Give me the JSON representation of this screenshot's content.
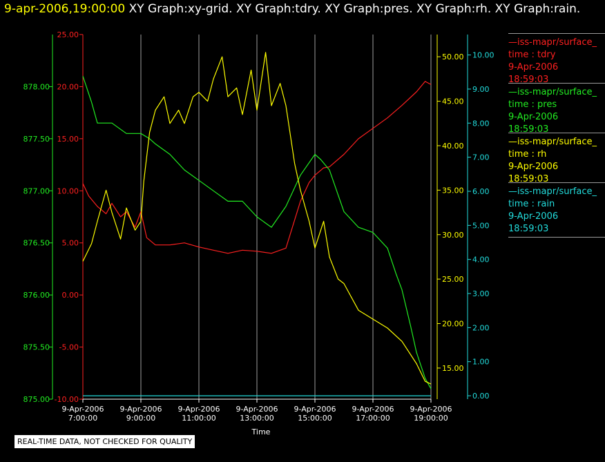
{
  "header": {
    "timestamp": "9-apr-2006,19:00:00",
    "graph_labels": [
      "XY Graph:xy-grid.",
      "XY Graph:tdry.",
      "XY Graph:pres.",
      "XY Graph:rh.",
      "XY Graph:rain."
    ]
  },
  "note": "REAL-TIME DATA, NOT CHECKED FOR QUALITY",
  "legend": [
    {
      "series_line": "—iss-mapr/surface_",
      "var": "time : tdry",
      "date": "9-Apr-2006",
      "time": "18:59:03",
      "color": "#ff2020"
    },
    {
      "series_line": "—iss-mapr/surface_",
      "var": "time : pres",
      "date": "9-Apr-2006",
      "time": "18:59:03",
      "color": "#22ee22"
    },
    {
      "series_line": "—iss-mapr/surface_",
      "var": "time : rh",
      "date": "9-Apr-2006",
      "time": "18:59:03",
      "color": "#ffff00"
    },
    {
      "series_line": "—iss-mapr/surface_",
      "var": "time : rain",
      "date": "9-Apr-2006",
      "time": "18:59:03",
      "color": "#22dddd"
    }
  ],
  "chart_data": {
    "type": "line",
    "xlabel": "Time",
    "x_ticks": [
      {
        "date": "9-Apr-2006",
        "time": "7:00:00",
        "h": 7
      },
      {
        "date": "9-Apr-2006",
        "time": "9:00:00",
        "h": 9
      },
      {
        "date": "9-Apr-2006",
        "time": "11:00:00",
        "h": 11
      },
      {
        "date": "9-Apr-2006",
        "time": "13:00:00",
        "h": 13
      },
      {
        "date": "9-Apr-2006",
        "time": "15:00:00",
        "h": 15
      },
      {
        "date": "9-Apr-2006",
        "time": "17:00:00",
        "h": 17
      },
      {
        "date": "9-Apr-2006",
        "time": "19:00:00",
        "h": 19
      }
    ],
    "xlim": [
      7,
      19
    ],
    "grid": "vertical",
    "axes": {
      "pres": {
        "color": "#22ee22",
        "ylim": [
          875.0,
          878.5
        ],
        "ticks": [
          "875.00",
          "875.50",
          "876.00",
          "876.50",
          "877.00",
          "877.50",
          "878.00"
        ],
        "side": "left-outer"
      },
      "tdry": {
        "color": "#ff2020",
        "ylim": [
          -10,
          25
        ],
        "ticks": [
          "-10.00",
          "-5.00",
          "0.00",
          "5.00",
          "10.00",
          "15.00",
          "20.00",
          "25.00"
        ],
        "side": "left-inner"
      },
      "rh": {
        "color": "#ffff00",
        "ylim": [
          11.5,
          52.5
        ],
        "ticks": [
          "15.00",
          "20.00",
          "25.00",
          "30.00",
          "35.00",
          "40.00",
          "45.00",
          "50.00"
        ],
        "side": "right-inner"
      },
      "rain": {
        "color": "#22dddd",
        "ylim": [
          -0.1,
          10.6
        ],
        "ticks": [
          "0.00",
          "1.00",
          "2.00",
          "3.00",
          "4.00",
          "5.00",
          "6.00",
          "7.00",
          "8.00",
          "9.00",
          "10.00"
        ],
        "side": "right-outer"
      }
    },
    "series": [
      {
        "name": "tdry",
        "axis": "tdry",
        "color": "#ff2020",
        "x": [
          7.0,
          7.2,
          7.5,
          7.8,
          8.0,
          8.3,
          8.5,
          8.8,
          9.0,
          9.2,
          9.5,
          10.0,
          10.5,
          11.0,
          11.5,
          12.0,
          12.5,
          13.0,
          13.5,
          14.0,
          14.5,
          14.8,
          15.0,
          15.3,
          15.5,
          16.0,
          16.5,
          17.0,
          17.5,
          18.0,
          18.5,
          18.8,
          19.0
        ],
        "y": [
          10.7,
          9.5,
          8.5,
          7.8,
          8.8,
          7.5,
          8.0,
          6.5,
          8.0,
          5.5,
          4.8,
          4.8,
          5.0,
          4.6,
          4.3,
          4.0,
          4.3,
          4.2,
          4.0,
          4.5,
          9.0,
          10.8,
          11.5,
          12.2,
          12.3,
          13.5,
          15.0,
          16.0,
          17.0,
          18.2,
          19.5,
          20.5,
          20.2
        ]
      },
      {
        "name": "pres",
        "axis": "pres",
        "color": "#22ee22",
        "x": [
          7.0,
          7.3,
          7.5,
          8.0,
          8.5,
          9.0,
          9.3,
          9.5,
          10.0,
          10.5,
          11.0,
          11.5,
          12.0,
          12.5,
          13.0,
          13.5,
          14.0,
          14.5,
          15.0,
          15.2,
          15.5,
          16.0,
          16.5,
          17.0,
          17.5,
          17.8,
          18.0,
          18.3,
          18.5,
          18.8,
          19.0
        ],
        "y": [
          878.1,
          877.85,
          877.65,
          877.65,
          877.55,
          877.55,
          877.5,
          877.45,
          877.35,
          877.2,
          877.1,
          877.0,
          876.9,
          876.9,
          876.75,
          876.65,
          876.85,
          877.15,
          877.35,
          877.3,
          877.2,
          876.8,
          876.65,
          876.6,
          876.45,
          876.2,
          876.05,
          875.7,
          875.45,
          875.2,
          875.1
        ]
      },
      {
        "name": "rh",
        "axis": "rh",
        "color": "#ffff00",
        "x": [
          7.0,
          7.3,
          7.5,
          7.8,
          8.0,
          8.3,
          8.5,
          8.8,
          9.0,
          9.1,
          9.3,
          9.5,
          9.8,
          10.0,
          10.3,
          10.5,
          10.8,
          11.0,
          11.3,
          11.5,
          11.8,
          12.0,
          12.3,
          12.5,
          12.8,
          13.0,
          13.3,
          13.5,
          13.8,
          14.0,
          14.3,
          14.5,
          14.8,
          15.0,
          15.3,
          15.5,
          15.8,
          16.0,
          16.5,
          17.0,
          17.5,
          18.0,
          18.5,
          18.8,
          19.0
        ],
        "y": [
          27.0,
          29.0,
          31.5,
          35.0,
          32.5,
          29.5,
          33.0,
          30.5,
          31.5,
          36.0,
          41.5,
          44.0,
          45.5,
          42.5,
          44.0,
          42.5,
          45.5,
          46.0,
          45.0,
          47.5,
          50.0,
          45.5,
          46.5,
          43.5,
          48.5,
          44.0,
          50.5,
          44.5,
          47.0,
          44.5,
          38.0,
          35.0,
          31.5,
          28.5,
          31.5,
          27.5,
          25.0,
          24.5,
          21.5,
          20.5,
          19.5,
          18.0,
          15.5,
          13.5,
          13.2
        ]
      },
      {
        "name": "rain",
        "axis": "rain",
        "color": "#22dddd",
        "x": [
          7.0,
          19.0
        ],
        "y": [
          0.0,
          0.0
        ]
      }
    ]
  }
}
